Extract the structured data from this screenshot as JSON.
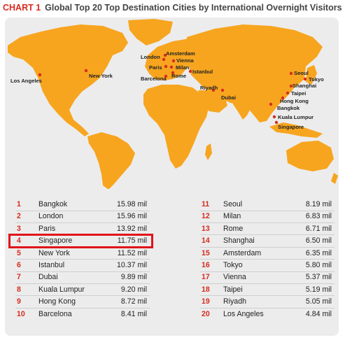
{
  "header": {
    "label": "CHART 1",
    "title": "Global Top 20 Top Destination Cities by International Overnight Visitors"
  },
  "colors": {
    "land": "#f7a51f",
    "dot": "#d62d1f",
    "panel": "#ececec",
    "highlight": "#e0141a",
    "rank": "#d62d1f"
  },
  "map_labels": [
    "Los Angeles",
    "New York",
    "London",
    "Amsterdam",
    "Paris",
    "Vienna",
    "Milan",
    "Barcelona",
    "Rome",
    "Istanbul",
    "Riyadh",
    "Dubai",
    "Seoul",
    "Tokyo",
    "Shanghai",
    "Taipei",
    "Hong Kong",
    "Bangkok",
    "Kuala Lumpur",
    "Singapore"
  ],
  "chart_data": {
    "type": "table",
    "columns": [
      "rank",
      "city",
      "visitors"
    ],
    "rows": [
      {
        "rank": "1",
        "city": "Bangkok",
        "value": "15.98 mil"
      },
      {
        "rank": "2",
        "city": "London",
        "value": "15.96 mil"
      },
      {
        "rank": "3",
        "city": "Paris",
        "value": "13.92 mil"
      },
      {
        "rank": "4",
        "city": "Singapore",
        "value": "11.75 mil"
      },
      {
        "rank": "5",
        "city": "New York",
        "value": "11.52 mil"
      },
      {
        "rank": "6",
        "city": "Istanbul",
        "value": "10.37 mil"
      },
      {
        "rank": "7",
        "city": "Dubai",
        "value": "9.89 mil"
      },
      {
        "rank": "8",
        "city": "Kuala Lumpur",
        "value": "9.20 mil"
      },
      {
        "rank": "9",
        "city": "Hong Kong",
        "value": "8.72 mil"
      },
      {
        "rank": "10",
        "city": "Barcelona",
        "value": "8.41 mil"
      },
      {
        "rank": "11",
        "city": "Seoul",
        "value": "8.19 mil"
      },
      {
        "rank": "12",
        "city": "Milan",
        "value": "6.83 mil"
      },
      {
        "rank": "13",
        "city": "Rome",
        "value": "6.71 mil"
      },
      {
        "rank": "14",
        "city": "Shanghai",
        "value": "6.50 mil"
      },
      {
        "rank": "15",
        "city": "Amsterdam",
        "value": "6.35 mil"
      },
      {
        "rank": "16",
        "city": "Tokyo",
        "value": "5.80 mil"
      },
      {
        "rank": "17",
        "city": "Vienna",
        "value": "5.37 mil"
      },
      {
        "rank": "18",
        "city": "Taipei",
        "value": "5.19 mil"
      },
      {
        "rank": "19",
        "city": "Riyadh",
        "value": "5.05 mil"
      },
      {
        "rank": "20",
        "city": "Los Angeles",
        "value": "4.84 mil"
      }
    ],
    "values": [
      15.98,
      15.96,
      13.92,
      11.75,
      11.52,
      10.37,
      9.89,
      9.2,
      8.72,
      8.41,
      8.19,
      6.83,
      6.71,
      6.5,
      6.35,
      5.8,
      5.37,
      5.19,
      5.05,
      4.84
    ],
    "unit": "mil",
    "highlighted_rank": "4"
  }
}
